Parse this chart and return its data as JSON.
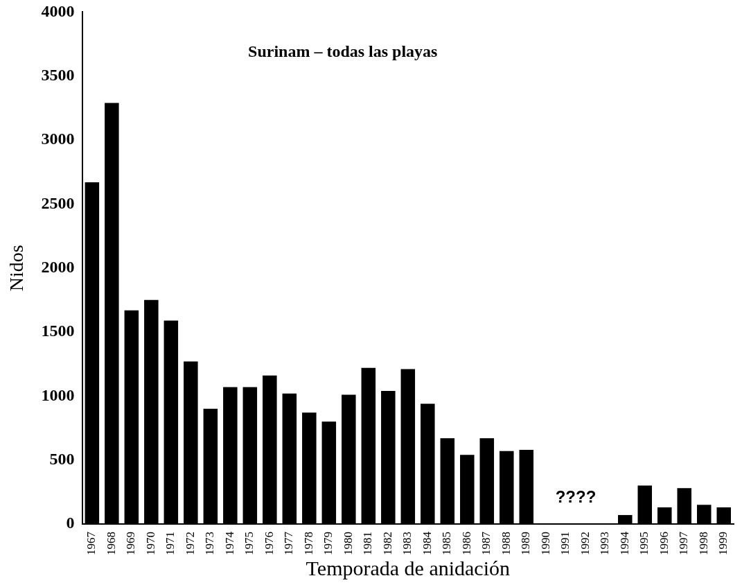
{
  "chart_data": {
    "type": "bar",
    "title": "Surinam – todas las playas",
    "xlabel": "Temporada de anidación",
    "ylabel": "Nidos",
    "categories": [
      "1967",
      "1968",
      "1969",
      "1970",
      "1971",
      "1972",
      "1973",
      "1974",
      "1975",
      "1976",
      "1977",
      "1978",
      "1979",
      "1980",
      "1981",
      "1982",
      "1983",
      "1984",
      "1985",
      "1986",
      "1987",
      "1988",
      "1989",
      "1990",
      "1991",
      "1992",
      "1993",
      "1994",
      "1995",
      "1996",
      "1997",
      "1998",
      "1999"
    ],
    "values": [
      2670,
      3290,
      1670,
      1750,
      1590,
      1270,
      900,
      1070,
      1070,
      1160,
      1020,
      870,
      800,
      1010,
      1220,
      1040,
      1210,
      940,
      670,
      540,
      670,
      570,
      580,
      null,
      null,
      null,
      null,
      70,
      300,
      130,
      280,
      150,
      130
    ],
    "color": "#000000",
    "ylim": [
      0,
      4000
    ],
    "yticks": [
      0,
      500,
      1000,
      1500,
      2000,
      2500,
      3000,
      3500,
      4000
    ],
    "annotations": [
      "????"
    ],
    "grid": false,
    "legend": false
  }
}
